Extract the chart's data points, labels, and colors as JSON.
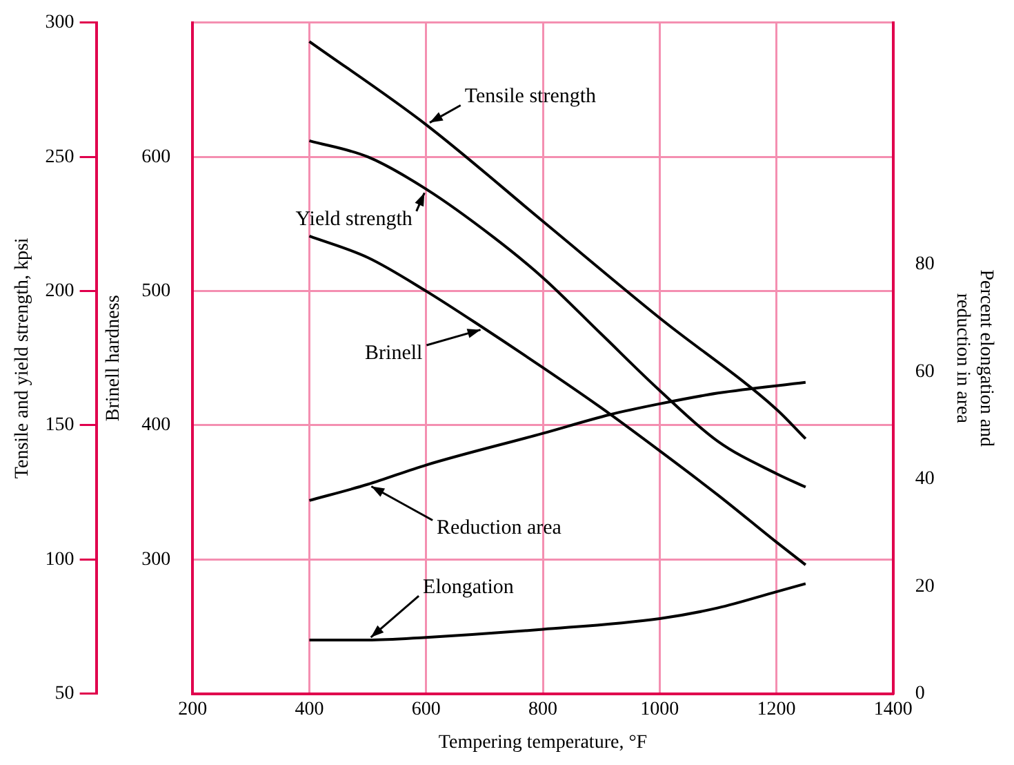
{
  "chart_data": {
    "type": "line",
    "xlabel": "Tempering temperature, °F",
    "ylabel": "Tensile and yield strength, kpsi",
    "y2label": "Brinell hardness",
    "y3label": "Percent elongation and reduction in area",
    "xlim": [
      200,
      1400
    ],
    "xticks": [
      200,
      400,
      600,
      800,
      1000,
      1200,
      1400
    ],
    "ylim": [
      50,
      300
    ],
    "yticks": [
      50,
      100,
      150,
      200,
      250,
      300
    ],
    "y2lim": [
      200,
      700
    ],
    "y2ticks": [
      300,
      400,
      500,
      600
    ],
    "y3lim": [
      0,
      125
    ],
    "y3ticks": [
      0,
      20,
      40,
      60,
      80
    ],
    "grid": true,
    "series": [
      {
        "name": "Tensile strength",
        "color": "#000000",
        "axis": "y",
        "x": [
          400,
          600,
          800,
          1000,
          1200,
          1250
        ],
        "values": [
          293,
          262,
          226,
          190,
          156,
          145
        ]
      },
      {
        "name": "Yield strength",
        "color": "#000000",
        "axis": "y",
        "x": [
          400,
          500,
          600,
          716,
          800,
          900,
          1000,
          1100,
          1200,
          1250
        ],
        "values": [
          256,
          250,
          238,
          220,
          205,
          184,
          163,
          144,
          132,
          127
        ]
      },
      {
        "name": "Brinell",
        "color": "#000000",
        "axis": "y2",
        "x": [
          400,
          500,
          600,
          700,
          800,
          900,
          1000,
          1100,
          1200,
          1250
        ],
        "values": [
          541,
          525,
          500,
          472,
          443,
          413,
          381,
          348,
          313,
          296
        ]
      },
      {
        "name": "Reduction area",
        "color": "#000000",
        "axis": "y3",
        "x": [
          400,
          500,
          600,
          800,
          915,
          1000,
          1100,
          1250
        ],
        "values": [
          36,
          39,
          42.6,
          48.5,
          52,
          54,
          56,
          58
        ]
      },
      {
        "name": "Elongation",
        "color": "#000000",
        "axis": "y3",
        "x": [
          400,
          500,
          600,
          800,
          1000,
          1100,
          1200,
          1250
        ],
        "values": [
          10,
          10,
          10.5,
          12,
          14,
          16,
          19,
          20.5
        ]
      }
    ]
  }
}
